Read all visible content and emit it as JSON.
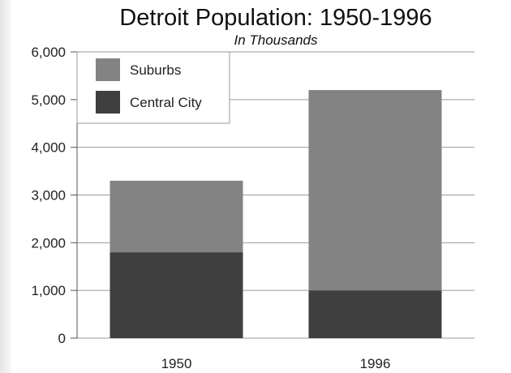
{
  "chart_data": {
    "type": "bar",
    "stacked": true,
    "title": "Detroit Population: 1950-1996",
    "subtitle": "In Thousands",
    "categories": [
      "1950",
      "1996"
    ],
    "series": [
      {
        "name": "Central City",
        "values": [
          1800,
          1000
        ],
        "color": "#3f3f3f"
      },
      {
        "name": "Suburbs",
        "values": [
          1500,
          4200
        ],
        "color": "#838383"
      }
    ],
    "ylim": [
      0,
      6000
    ],
    "yticks": [
      0,
      1000,
      2000,
      3000,
      4000,
      5000,
      6000
    ],
    "ytick_labels": [
      "0",
      "1,000",
      "2,000",
      "3,000",
      "4,000",
      "5,000",
      "6,000"
    ],
    "grid": true,
    "legend_position": "top-left",
    "legend_order": [
      "Suburbs",
      "Central City"
    ]
  }
}
